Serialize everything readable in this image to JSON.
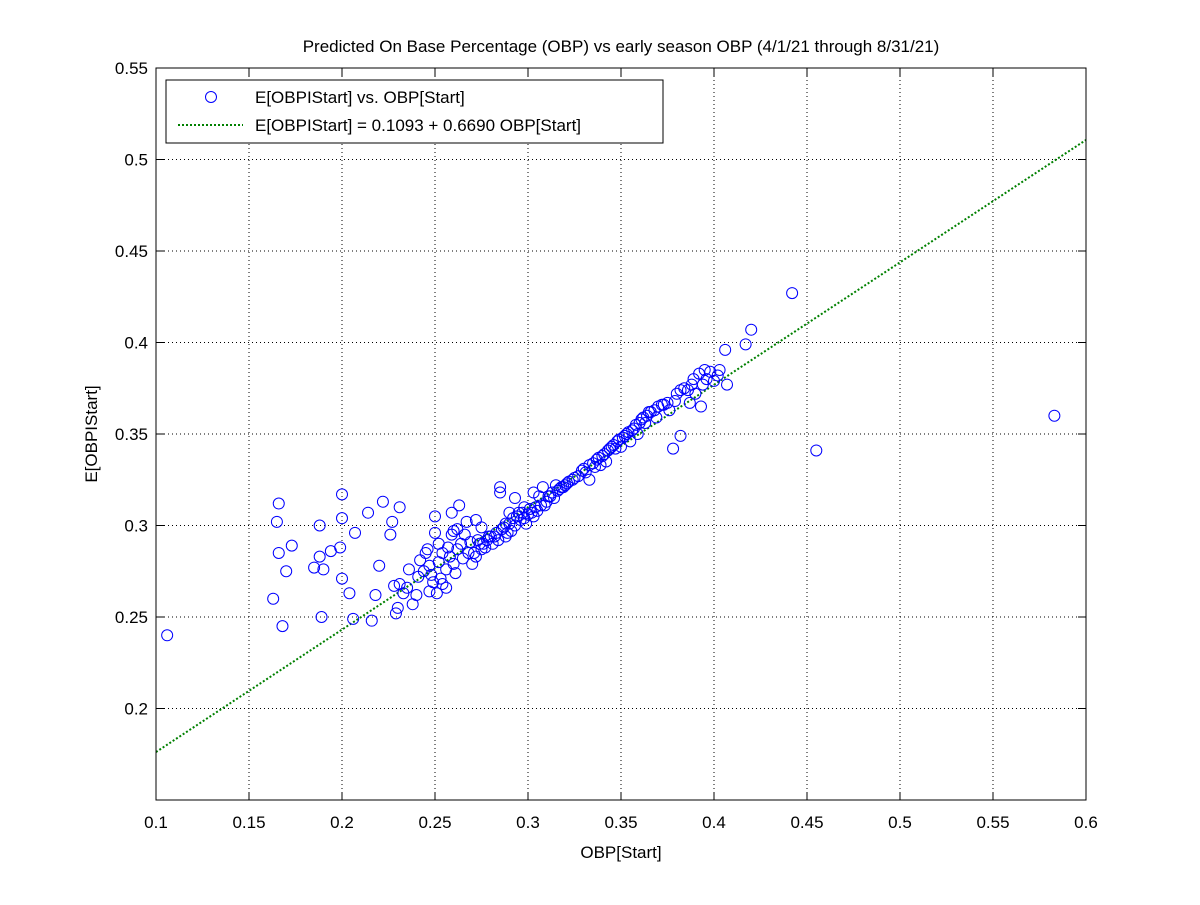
{
  "chart_data": {
    "type": "scatter",
    "title": "Predicted On Base Percentage (OBP) vs early season OBP (4/1/21 through 8/31/21)",
    "xlabel": "OBP[Start]",
    "ylabel": "E[OBPIStart]",
    "xlim": [
      0.1,
      0.6
    ],
    "ylim": [
      0.15,
      0.55
    ],
    "xticks": [
      "0.1",
      "0.15",
      "0.2",
      "0.25",
      "0.3",
      "0.35",
      "0.4",
      "0.45",
      "0.5",
      "0.55",
      "0.6"
    ],
    "yticks": [
      "0.2",
      "0.25",
      "0.3",
      "0.35",
      "0.4",
      "0.45",
      "0.5",
      "0.55"
    ],
    "grid": true,
    "legend_position": "top-left",
    "series": [
      {
        "name": "E[OBPIStart] vs. OBP[Start]",
        "kind": "scatter",
        "marker": "open-circle",
        "color": "#0000ff",
        "points": [
          [
            0.106,
            0.24
          ],
          [
            0.163,
            0.26
          ],
          [
            0.165,
            0.302
          ],
          [
            0.166,
            0.312
          ],
          [
            0.166,
            0.285
          ],
          [
            0.168,
            0.245
          ],
          [
            0.17,
            0.275
          ],
          [
            0.173,
            0.289
          ],
          [
            0.185,
            0.277
          ],
          [
            0.188,
            0.3
          ],
          [
            0.188,
            0.283
          ],
          [
            0.189,
            0.25
          ],
          [
            0.19,
            0.276
          ],
          [
            0.194,
            0.286
          ],
          [
            0.199,
            0.288
          ],
          [
            0.2,
            0.317
          ],
          [
            0.2,
            0.304
          ],
          [
            0.2,
            0.271
          ],
          [
            0.204,
            0.263
          ],
          [
            0.206,
            0.249
          ],
          [
            0.207,
            0.296
          ],
          [
            0.214,
            0.307
          ],
          [
            0.216,
            0.248
          ],
          [
            0.218,
            0.262
          ],
          [
            0.22,
            0.278
          ],
          [
            0.222,
            0.313
          ],
          [
            0.226,
            0.295
          ],
          [
            0.227,
            0.302
          ],
          [
            0.228,
            0.267
          ],
          [
            0.229,
            0.252
          ],
          [
            0.23,
            0.255
          ],
          [
            0.231,
            0.31
          ],
          [
            0.231,
            0.268
          ],
          [
            0.233,
            0.263
          ],
          [
            0.235,
            0.266
          ],
          [
            0.236,
            0.276
          ],
          [
            0.238,
            0.257
          ],
          [
            0.24,
            0.262
          ],
          [
            0.241,
            0.272
          ],
          [
            0.242,
            0.281
          ],
          [
            0.244,
            0.275
          ],
          [
            0.245,
            0.285
          ],
          [
            0.246,
            0.287
          ],
          [
            0.247,
            0.278
          ],
          [
            0.247,
            0.264
          ],
          [
            0.248,
            0.273
          ],
          [
            0.249,
            0.269
          ],
          [
            0.25,
            0.305
          ],
          [
            0.25,
            0.296
          ],
          [
            0.251,
            0.263
          ],
          [
            0.252,
            0.28
          ],
          [
            0.252,
            0.29
          ],
          [
            0.253,
            0.271
          ],
          [
            0.254,
            0.285
          ],
          [
            0.254,
            0.268
          ],
          [
            0.256,
            0.276
          ],
          [
            0.256,
            0.266
          ],
          [
            0.257,
            0.288
          ],
          [
            0.258,
            0.283
          ],
          [
            0.259,
            0.307
          ],
          [
            0.259,
            0.295
          ],
          [
            0.26,
            0.279
          ],
          [
            0.26,
            0.297
          ],
          [
            0.261,
            0.274
          ],
          [
            0.262,
            0.287
          ],
          [
            0.262,
            0.298
          ],
          [
            0.263,
            0.311
          ],
          [
            0.264,
            0.29
          ],
          [
            0.265,
            0.282
          ],
          [
            0.266,
            0.295
          ],
          [
            0.267,
            0.302
          ],
          [
            0.268,
            0.285
          ],
          [
            0.269,
            0.291
          ],
          [
            0.27,
            0.279
          ],
          [
            0.271,
            0.285
          ],
          [
            0.272,
            0.303
          ],
          [
            0.272,
            0.283
          ],
          [
            0.273,
            0.292
          ],
          [
            0.274,
            0.29
          ],
          [
            0.275,
            0.287
          ],
          [
            0.275,
            0.299
          ],
          [
            0.276,
            0.29
          ],
          [
            0.277,
            0.288
          ],
          [
            0.278,
            0.292
          ],
          [
            0.279,
            0.294
          ],
          [
            0.28,
            0.294
          ],
          [
            0.281,
            0.29
          ],
          [
            0.282,
            0.294
          ],
          [
            0.283,
            0.296
          ],
          [
            0.284,
            0.292
          ],
          [
            0.285,
            0.321
          ],
          [
            0.285,
            0.318
          ],
          [
            0.286,
            0.298
          ],
          [
            0.287,
            0.299
          ],
          [
            0.288,
            0.301
          ],
          [
            0.288,
            0.294
          ],
          [
            0.289,
            0.296
          ],
          [
            0.29,
            0.307
          ],
          [
            0.29,
            0.301
          ],
          [
            0.291,
            0.297
          ],
          [
            0.292,
            0.304
          ],
          [
            0.293,
            0.315
          ],
          [
            0.293,
            0.3
          ],
          [
            0.294,
            0.305
          ],
          [
            0.295,
            0.307
          ],
          [
            0.296,
            0.303
          ],
          [
            0.297,
            0.307
          ],
          [
            0.298,
            0.31
          ],
          [
            0.298,
            0.304
          ],
          [
            0.299,
            0.301
          ],
          [
            0.3,
            0.306
          ],
          [
            0.301,
            0.309
          ],
          [
            0.302,
            0.307
          ],
          [
            0.303,
            0.318
          ],
          [
            0.303,
            0.305
          ],
          [
            0.304,
            0.31
          ],
          [
            0.305,
            0.308
          ],
          [
            0.306,
            0.316
          ],
          [
            0.307,
            0.311
          ],
          [
            0.308,
            0.321
          ],
          [
            0.309,
            0.311
          ],
          [
            0.31,
            0.313
          ],
          [
            0.311,
            0.316
          ],
          [
            0.312,
            0.316
          ],
          [
            0.313,
            0.318
          ],
          [
            0.314,
            0.315
          ],
          [
            0.315,
            0.322
          ],
          [
            0.316,
            0.319
          ],
          [
            0.317,
            0.32
          ],
          [
            0.318,
            0.321
          ],
          [
            0.319,
            0.321
          ],
          [
            0.32,
            0.322
          ],
          [
            0.321,
            0.323
          ],
          [
            0.322,
            0.324
          ],
          [
            0.324,
            0.325
          ],
          [
            0.325,
            0.326
          ],
          [
            0.327,
            0.327
          ],
          [
            0.329,
            0.33
          ],
          [
            0.33,
            0.331
          ],
          [
            0.331,
            0.329
          ],
          [
            0.333,
            0.325
          ],
          [
            0.333,
            0.333
          ],
          [
            0.335,
            0.334
          ],
          [
            0.336,
            0.332
          ],
          [
            0.337,
            0.336
          ],
          [
            0.338,
            0.337
          ],
          [
            0.339,
            0.333
          ],
          [
            0.34,
            0.338
          ],
          [
            0.341,
            0.339
          ],
          [
            0.342,
            0.335
          ],
          [
            0.343,
            0.341
          ],
          [
            0.344,
            0.342
          ],
          [
            0.345,
            0.343
          ],
          [
            0.346,
            0.344
          ],
          [
            0.347,
            0.342
          ],
          [
            0.348,
            0.346
          ],
          [
            0.349,
            0.347
          ],
          [
            0.35,
            0.343
          ],
          [
            0.351,
            0.348
          ],
          [
            0.352,
            0.349
          ],
          [
            0.353,
            0.35
          ],
          [
            0.354,
            0.351
          ],
          [
            0.355,
            0.346
          ],
          [
            0.356,
            0.352
          ],
          [
            0.357,
            0.353
          ],
          [
            0.358,
            0.355
          ],
          [
            0.359,
            0.35
          ],
          [
            0.36,
            0.356
          ],
          [
            0.361,
            0.358
          ],
          [
            0.362,
            0.359
          ],
          [
            0.363,
            0.356
          ],
          [
            0.364,
            0.36
          ],
          [
            0.365,
            0.362
          ],
          [
            0.366,
            0.362
          ],
          [
            0.368,
            0.363
          ],
          [
            0.369,
            0.359
          ],
          [
            0.37,
            0.365
          ],
          [
            0.372,
            0.366
          ],
          [
            0.373,
            0.366
          ],
          [
            0.375,
            0.367
          ],
          [
            0.376,
            0.363
          ],
          [
            0.378,
            0.342
          ],
          [
            0.379,
            0.368
          ],
          [
            0.38,
            0.372
          ],
          [
            0.382,
            0.349
          ],
          [
            0.382,
            0.374
          ],
          [
            0.384,
            0.375
          ],
          [
            0.386,
            0.374
          ],
          [
            0.387,
            0.367
          ],
          [
            0.388,
            0.377
          ],
          [
            0.389,
            0.38
          ],
          [
            0.39,
            0.372
          ],
          [
            0.392,
            0.383
          ],
          [
            0.393,
            0.365
          ],
          [
            0.394,
            0.377
          ],
          [
            0.395,
            0.385
          ],
          [
            0.396,
            0.38
          ],
          [
            0.398,
            0.384
          ],
          [
            0.4,
            0.379
          ],
          [
            0.402,
            0.382
          ],
          [
            0.403,
            0.385
          ],
          [
            0.406,
            0.396
          ],
          [
            0.407,
            0.377
          ],
          [
            0.417,
            0.399
          ],
          [
            0.42,
            0.407
          ],
          [
            0.442,
            0.427
          ],
          [
            0.455,
            0.341
          ],
          [
            0.583,
            0.36
          ]
        ]
      },
      {
        "name": "E[OBPIStart] = 0.1093 + 0.6690 OBP[Start]",
        "kind": "line",
        "style": "dotted",
        "color": "#008000",
        "intercept": 0.1093,
        "slope": 0.669
      }
    ]
  }
}
